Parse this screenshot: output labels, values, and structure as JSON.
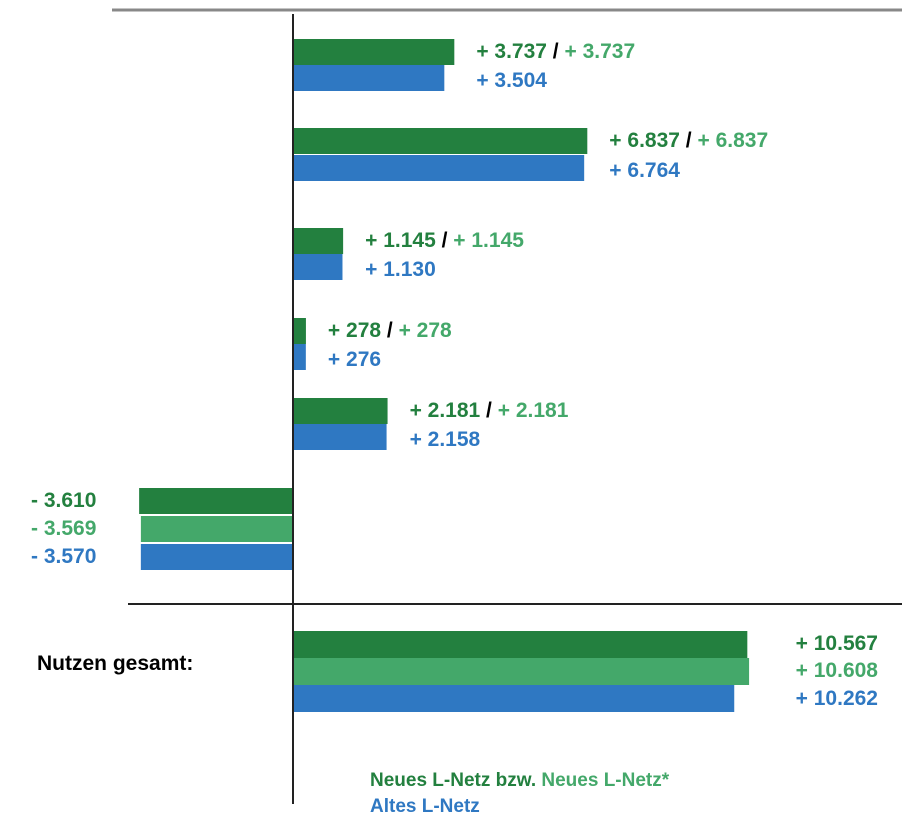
{
  "colors": {
    "neues": "#23803f",
    "neues_star": "#44a86a",
    "altes": "#2f78c2",
    "axis": "#222222",
    "top_rule": "#888888"
  },
  "chart_data": {
    "type": "bar",
    "orientation": "horizontal",
    "title": "",
    "xlabel": "",
    "ylabel": "",
    "groups": [
      {
        "neues": 3737,
        "neues_star": 3737,
        "altes": 3504,
        "labels": {
          "neues": "+ 3.737",
          "sep": " / ",
          "neues_star": "+ 3.737",
          "altes": "+ 3.504"
        }
      },
      {
        "neues": 6837,
        "neues_star": 6837,
        "altes": 6764,
        "labels": {
          "neues": "+ 6.837",
          "sep": " / ",
          "neues_star": "+ 6.837",
          "altes": "+ 6.764"
        }
      },
      {
        "neues": 1145,
        "neues_star": 1145,
        "altes": 1130,
        "labels": {
          "neues": "+ 1.145",
          "sep": " / ",
          "neues_star": "+ 1.145",
          "altes": "+ 1.130"
        }
      },
      {
        "neues": 278,
        "neues_star": 278,
        "altes": 276,
        "labels": {
          "neues": "+ 278",
          "sep": " / ",
          "neues_star": "+ 278",
          "altes": "+ 276"
        }
      },
      {
        "neues": 2181,
        "neues_star": 2181,
        "altes": 2158,
        "labels": {
          "neues": "+ 2.181",
          "sep": " / ",
          "neues_star": "+ 2.181",
          "altes": "+ 2.158"
        }
      },
      {
        "neues": -3610,
        "neues_star": -3569,
        "altes": -3570,
        "labels": {
          "neues": "- 3.610",
          "neues_star": "- 3.569",
          "altes": "- 3.570"
        }
      }
    ],
    "total": {
      "label": "Nutzen gesamt:",
      "neues": 10567,
      "neues_star": 10608,
      "altes": 10262,
      "labels": {
        "neues": "+ 10.567",
        "neues_star": "+ 10.608",
        "altes": "+ 10.262"
      }
    },
    "legend": {
      "neues": "Neues L-Netz",
      "sep": " bzw. ",
      "neues_star": "Neues L-Netz*",
      "altes": "Altes L-Netz"
    }
  }
}
